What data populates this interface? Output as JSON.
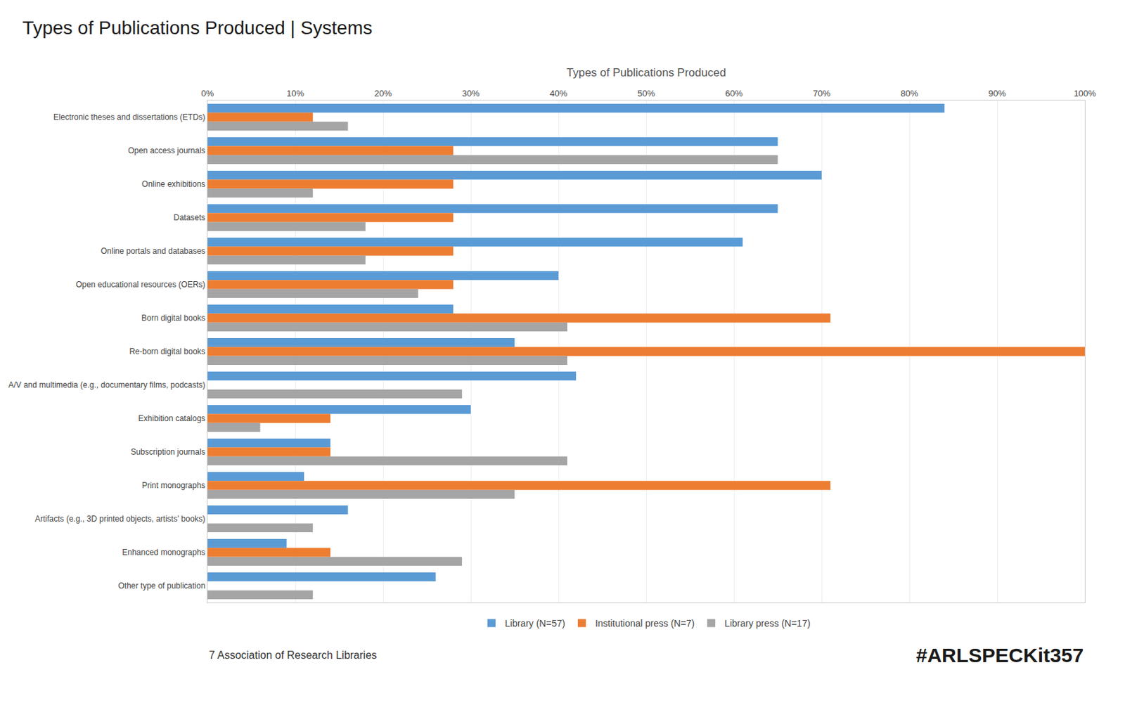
{
  "chart_data": {
    "type": "bar",
    "orientation": "horizontal",
    "title": "Types of Publications Produced | Systems",
    "subtitle": "Types of Publications Produced",
    "annotations": [
      "7 Association of Research Libraries",
      "#ARLSPECKit357"
    ],
    "categories": [
      "Electronic theses and dissertations (ETDs)",
      "Open access journals",
      "Online exhibitions",
      "Datasets",
      "Online portals and databases",
      "Open educational resources (OERs)",
      "Born digital books",
      "Re-born digital books",
      "A/V and multimedia (e.g., documentary films, podcasts)",
      "Exhibition catalogs",
      "Subscription journals",
      "Print monographs",
      "Artifacts (e.g., 3D printed objects, artists' books)",
      "Enhanced monographs",
      "Other type of publication"
    ],
    "series": [
      {
        "name": "Library (N=57)",
        "color": "#5B9BD5",
        "values": [
          84,
          65,
          70,
          65,
          61,
          40,
          28,
          35,
          42,
          30,
          14,
          11,
          16,
          9,
          26
        ]
      },
      {
        "name": "Institutional press (N=7)",
        "color": "#ED7D31",
        "values": [
          12,
          28,
          28,
          28,
          28,
          28,
          71,
          100,
          0,
          14,
          14,
          71,
          0,
          14,
          0
        ]
      },
      {
        "name": "Library press (N=17)",
        "color": "#A5A5A5",
        "values": [
          16,
          65,
          12,
          18,
          18,
          24,
          41,
          41,
          29,
          6,
          41,
          35,
          12,
          29,
          12
        ]
      }
    ],
    "xlim": [
      0,
      100
    ],
    "xticks": [
      {
        "value": 0,
        "label": "0%"
      },
      {
        "value": 10,
        "label": "10%"
      },
      {
        "value": 20,
        "label": "20%"
      },
      {
        "value": 30,
        "label": "30%"
      },
      {
        "value": 40,
        "label": "40%"
      },
      {
        "value": 50,
        "label": "50%"
      },
      {
        "value": 60,
        "label": "60%"
      },
      {
        "value": 70,
        "label": "70%"
      },
      {
        "value": 80,
        "label": "80%"
      },
      {
        "value": 90,
        "label": "90%"
      },
      {
        "value": 100,
        "label": "100%"
      }
    ],
    "grid": true,
    "legend": "bottom"
  }
}
